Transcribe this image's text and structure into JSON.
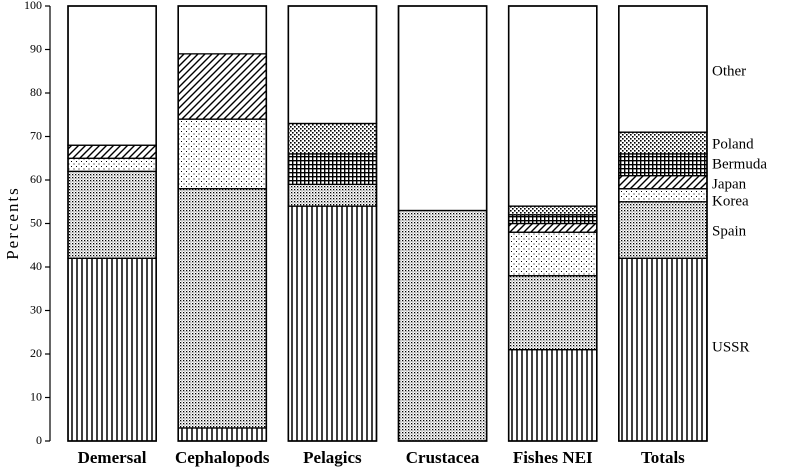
{
  "chart_data": {
    "type": "stacked_bar",
    "ylabel": "Percents",
    "categories": [
      "Demersal",
      "Cephalopods",
      "Pelagics",
      "Crustacea",
      "Fishes NEI",
      "Totals"
    ],
    "series": [
      {
        "name": "USSR",
        "color": "#000000",
        "pattern": "vertical-lines",
        "values": [
          42,
          3,
          54,
          0,
          21,
          42
        ]
      },
      {
        "name": "Spain",
        "color": "#000000",
        "pattern": "dense-dots",
        "values": [
          20,
          55,
          5,
          53,
          17,
          13
        ]
      },
      {
        "name": "Korea",
        "color": "#000000",
        "pattern": "sparse-dots",
        "values": [
          3,
          16,
          0,
          0,
          10,
          3
        ]
      },
      {
        "name": "Japan",
        "color": "#000000",
        "pattern": "diagonal-lines",
        "values": [
          3,
          15,
          0,
          0,
          2,
          3
        ]
      },
      {
        "name": "Bermuda",
        "color": "#000000",
        "pattern": "grid",
        "values": [
          0,
          0,
          7,
          0,
          2,
          5
        ]
      },
      {
        "name": "Poland",
        "color": "#000000",
        "pattern": "medium-dots",
        "values": [
          0,
          0,
          7,
          0,
          2,
          5
        ]
      },
      {
        "name": "Other",
        "color": "#000000",
        "pattern": "none",
        "values": [
          32,
          11,
          27,
          47,
          46,
          29
        ]
      }
    ],
    "ylim": [
      0,
      100
    ],
    "yticks": [
      0,
      10,
      20,
      30,
      40,
      50,
      60,
      70,
      80,
      90,
      100
    ]
  }
}
